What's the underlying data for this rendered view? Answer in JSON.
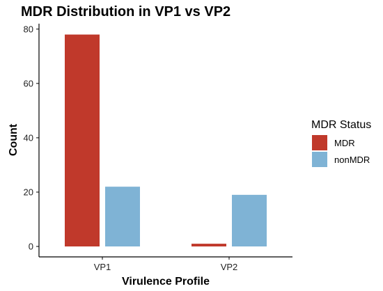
{
  "chart_data": {
    "type": "bar",
    "title": "MDR Distribution in VP1 vs VP2",
    "xlabel": "Virulence Profile",
    "ylabel": "Count",
    "categories": [
      "VP1",
      "VP2"
    ],
    "series": [
      {
        "name": "MDR",
        "values": [
          78,
          1
        ],
        "color": "#c0392b"
      },
      {
        "name": "nonMDR",
        "values": [
          22,
          19
        ],
        "color": "#7fb3d5"
      }
    ],
    "ylim": [
      0,
      82
    ],
    "yticks": [
      0,
      20,
      40,
      60,
      80
    ],
    "grid": false,
    "legend": {
      "title": "MDR Status",
      "placement": "right"
    }
  }
}
